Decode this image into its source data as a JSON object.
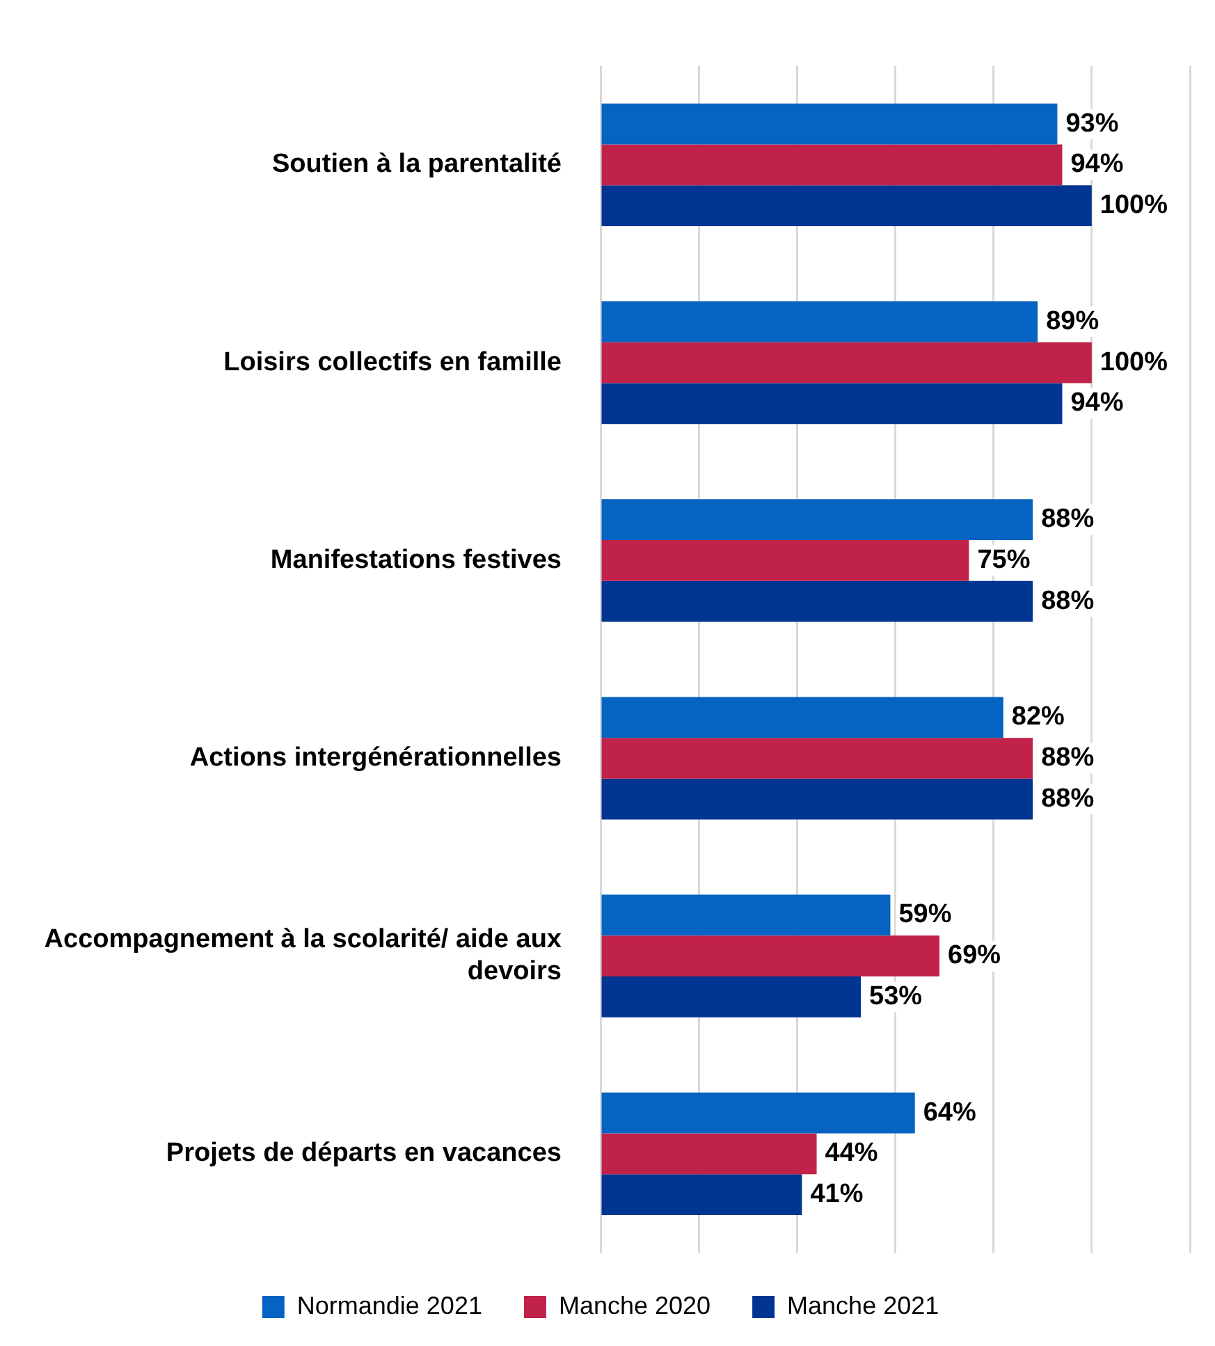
{
  "chart_data": {
    "type": "bar",
    "orientation": "horizontal",
    "categories": [
      "Soutien à la parentalité",
      "Loisirs collectifs en famille",
      "Manifestations festives",
      "Actions intergénérationnelles",
      "Accompagnement à la scolarité/ aide aux devoirs",
      "Projets de départs en vacances"
    ],
    "series": [
      {
        "name": "Normandie 2021",
        "color": "#0563c1",
        "values": [
          93,
          89,
          88,
          82,
          59,
          64
        ],
        "value_labels": [
          "93%",
          "89%",
          "88%",
          "82%",
          "59%",
          "64%"
        ]
      },
      {
        "name": "Manche 2020",
        "color": "#c0224a",
        "values": [
          94,
          100,
          75,
          88,
          69,
          44
        ],
        "value_labels": [
          "94%",
          "100%",
          "75%",
          "88%",
          "69%",
          "44%"
        ]
      },
      {
        "name": "Manche 2021",
        "color": "#003591",
        "values": [
          100,
          94,
          88,
          88,
          53,
          41
        ],
        "value_labels": [
          "100%",
          "94%",
          "88%",
          "88%",
          "53%",
          "41%"
        ]
      }
    ],
    "xlim": [
      0,
      120
    ],
    "xticks": [
      {
        "value": 0,
        "label": null
      },
      {
        "value": 20,
        "label": null
      },
      {
        "value": 40,
        "label": null
      },
      {
        "value": 60,
        "label": null
      },
      {
        "value": 80,
        "label": null
      },
      {
        "value": 100,
        "label": null
      },
      {
        "value": 120,
        "label": null
      }
    ],
    "grid": "x",
    "tick_labels": "y",
    "legend": "bottom"
  }
}
